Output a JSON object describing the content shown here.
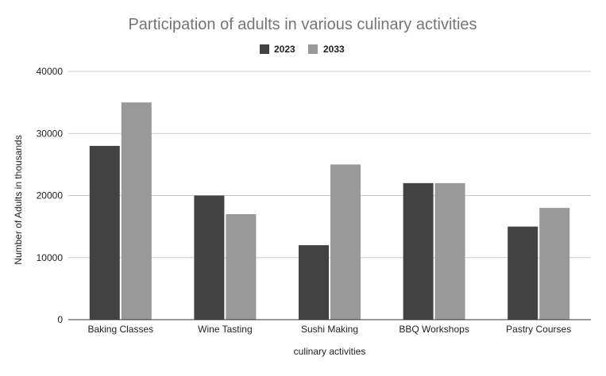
{
  "chart_data": {
    "type": "bar",
    "title": "Participation of adults in various culinary activities",
    "xlabel": "culinary activities",
    "ylabel": "Number of Adults in thousands",
    "categories": [
      "Baking Classes",
      "Wine Tasting",
      "Sushi Making",
      "BBQ Workshops",
      "Pastry Courses"
    ],
    "series": [
      {
        "name": "2023",
        "color": "#424242",
        "values": [
          28000,
          20000,
          12000,
          22000,
          15000
        ]
      },
      {
        "name": "2033",
        "color": "#999999",
        "values": [
          35000,
          17000,
          25000,
          22000,
          18000
        ]
      }
    ],
    "ylim": [
      0,
      40000
    ],
    "yticks": [
      "0",
      "10000",
      "20000",
      "30000",
      "40000"
    ],
    "grid": true,
    "legend_position": "top-center"
  }
}
